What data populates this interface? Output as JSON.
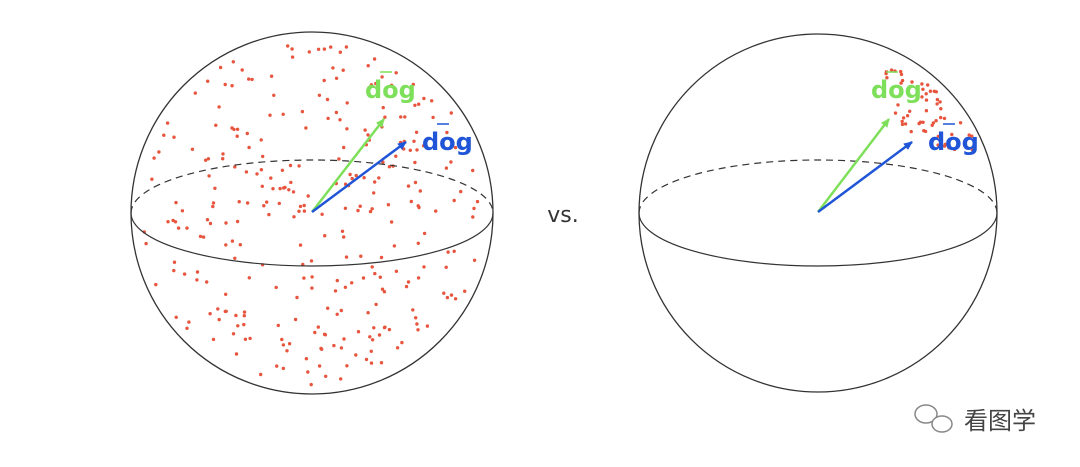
{
  "left_sphere": {
    "green_label": "dog",
    "blue_label": "dog"
  },
  "separator": "vs.",
  "right_sphere": {
    "green_label": "dog",
    "blue_label": "dog"
  },
  "watermark": "看图学"
}
